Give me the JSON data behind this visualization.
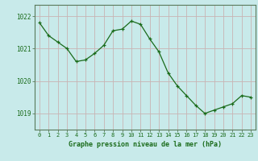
{
  "x": [
    0,
    1,
    2,
    3,
    4,
    5,
    6,
    7,
    8,
    9,
    10,
    11,
    12,
    13,
    14,
    15,
    16,
    17,
    18,
    19,
    20,
    21,
    22,
    23
  ],
  "y": [
    1021.8,
    1021.4,
    1021.2,
    1021.0,
    1020.6,
    1020.65,
    1020.85,
    1021.1,
    1021.55,
    1021.6,
    1021.85,
    1021.75,
    1021.3,
    1020.9,
    1020.25,
    1019.85,
    1019.55,
    1019.25,
    1019.0,
    1019.1,
    1019.2,
    1019.3,
    1019.55,
    1019.5
  ],
  "line_color": "#1a6b1a",
  "marker_color": "#1a6b1a",
  "bg_color": "#c8eaea",
  "grid_color": "#c8b4b4",
  "tick_label_color": "#1a6b1a",
  "xlabel": "Graphe pression niveau de la mer (hPa)",
  "xlabel_color": "#1a6b1a",
  "ylim": [
    1018.5,
    1022.35
  ],
  "yticks": [
    1019,
    1020,
    1021,
    1022
  ],
  "xticks": [
    0,
    1,
    2,
    3,
    4,
    5,
    6,
    7,
    8,
    9,
    10,
    11,
    12,
    13,
    14,
    15,
    16,
    17,
    18,
    19,
    20,
    21,
    22,
    23
  ],
  "xtick_labels": [
    "0",
    "1",
    "2",
    "3",
    "4",
    "5",
    "6",
    "7",
    "8",
    "9",
    "10",
    "11",
    "12",
    "13",
    "14",
    "15",
    "16",
    "17",
    "18",
    "19",
    "20",
    "21",
    "22",
    "23"
  ],
  "border_color": "#5a8a5a",
  "axis_color": "#5a7a5a"
}
